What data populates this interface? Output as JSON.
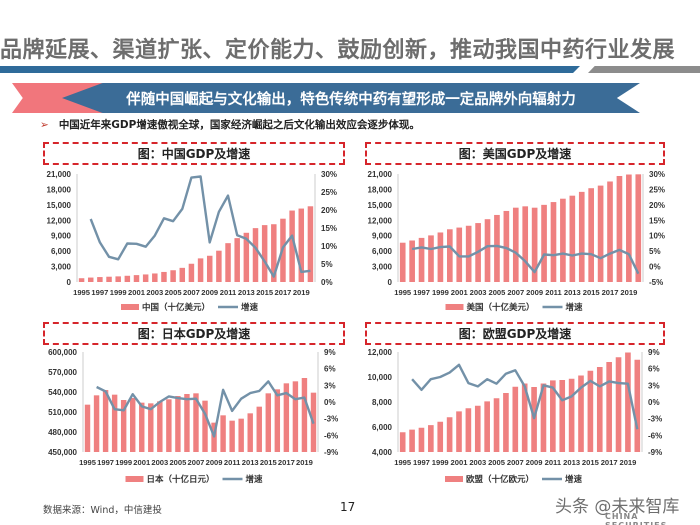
{
  "header": {
    "title": "品牌延展、渠道扩张、定价能力、鼓励创新，推动我国中药行业发展",
    "banner": "伴随中国崛起与文化输出，特色传统中药有望形成一定品牌外向辐射力",
    "bullet": "中国近年来GDP增速傲视全球，国家经济崛起之后文化输出效应会逐步体现。"
  },
  "footer": {
    "source": "数据来源：Wind，中信建投",
    "page": "17",
    "watermark": "头条 @未来智库",
    "logo_text": "CHINA SECURITIES"
  },
  "colors": {
    "bar": "#ef8080",
    "line": "#7391a8",
    "title_border": "#d6252b",
    "banner": "#3b6c97"
  },
  "chart_data": [
    {
      "type": "bar+line",
      "title": "图：中国GDP及增速",
      "bar_series": "中国（十亿美元）",
      "line_series": "增速",
      "x": [
        1995,
        1996,
        1997,
        1998,
        1999,
        2000,
        2001,
        2002,
        2003,
        2004,
        2005,
        2006,
        2007,
        2008,
        2009,
        2010,
        2011,
        2012,
        2013,
        2014,
        2015,
        2016,
        2017,
        2018,
        2019,
        2020
      ],
      "x_tick_labels": [
        "1995",
        "1997",
        "1999",
        "2001",
        "2003",
        "2005",
        "2007",
        "2009",
        "2011",
        "2013",
        "2015",
        "2017",
        "2019"
      ],
      "bars": [
        734,
        863,
        961,
        1029,
        1094,
        1211,
        1339,
        1471,
        1660,
        1955,
        2286,
        2752,
        3550,
        4594,
        5102,
        6087,
        7552,
        8532,
        9570,
        10475,
        11062,
        11233,
        12310,
        13894,
        14280,
        14723
      ],
      "growth": [
        null,
        17.5,
        11,
        7,
        6.3,
        10.7,
        10.6,
        9.8,
        12.9,
        17.7,
        16.9,
        20.3,
        29,
        29.3,
        11,
        19.5,
        24,
        13,
        12,
        9.5,
        5.7,
        1.5,
        9.6,
        12.9,
        2.8,
        3.1
      ],
      "ylim": [
        0,
        21000
      ],
      "yticks": [
        "0",
        "3,000",
        "6,000",
        "9,000",
        "12,000",
        "15,000",
        "18,000",
        "21,000"
      ],
      "y2lim": [
        0,
        30
      ],
      "y2ticks": [
        "0%",
        "5%",
        "10%",
        "15%",
        "20%",
        "25%",
        "30%"
      ]
    },
    {
      "type": "bar+line",
      "title": "图：美国GDP及增速",
      "bar_series": "美国（十亿美元）",
      "line_series": "增速",
      "x": [
        1995,
        1996,
        1997,
        1998,
        1999,
        2000,
        2001,
        2002,
        2003,
        2004,
        2005,
        2006,
        2007,
        2008,
        2009,
        2010,
        2011,
        2012,
        2013,
        2014,
        2015,
        2016,
        2017,
        2018,
        2019,
        2020
      ],
      "x_tick_labels": [
        "1995",
        "1997",
        "1999",
        "2001",
        "2003",
        "2005",
        "2007",
        "2009",
        "2011",
        "2013",
        "2015",
        "2017",
        "2019"
      ],
      "bars": [
        7640,
        8073,
        8577,
        9063,
        9631,
        10252,
        10582,
        10936,
        11458,
        12214,
        13037,
        13815,
        14452,
        14713,
        14449,
        15000,
        15543,
        16197,
        16785,
        17527,
        18238,
        18745,
        19543,
        20612,
        20900,
        20937
      ],
      "growth": [
        null,
        5.7,
        6.2,
        5.7,
        6.3,
        6.5,
        3.3,
        3.3,
        4.8,
        6.6,
        6.7,
        6.0,
        4.5,
        1.7,
        -1.8,
        3.9,
        3.7,
        4.2,
        3.6,
        4.2,
        4.0,
        2.7,
        4.2,
        5.4,
        4.0,
        -2.3
      ],
      "ylim": [
        0,
        21000
      ],
      "yticks": [
        "0",
        "3,000",
        "6,000",
        "9,000",
        "12,000",
        "15,000",
        "18,000",
        "21,000"
      ],
      "y2lim": [
        -5,
        30
      ],
      "y2ticks": [
        "-5%",
        "0%",
        "5%",
        "10%",
        "15%",
        "20%",
        "25%",
        "30%"
      ]
    },
    {
      "type": "bar+line",
      "title": "图：日本GDP及增速",
      "bar_series": "日本（十亿日元）",
      "line_series": "增速",
      "x": [
        1995,
        1996,
        1997,
        1998,
        1999,
        2000,
        2001,
        2002,
        2003,
        2004,
        2005,
        2006,
        2007,
        2008,
        2009,
        2010,
        2011,
        2012,
        2013,
        2014,
        2015,
        2016,
        2017,
        2018,
        2019,
        2020
      ],
      "x_tick_labels": [
        "1995",
        "1997",
        "1999",
        "2001",
        "2003",
        "2005",
        "2007",
        "2009",
        "2011",
        "2013",
        "2015",
        "2017",
        "2019"
      ],
      "bars": [
        521000,
        535000,
        543000,
        536000,
        528000,
        531000,
        524000,
        523000,
        526000,
        529000,
        534000,
        537000,
        538000,
        527000,
        494000,
        505000,
        497000,
        500000,
        508000,
        518000,
        538000,
        544000,
        553000,
        556000,
        561000,
        539000
      ],
      "growth": [
        null,
        2.7,
        1.9,
        -1.3,
        -1.5,
        1.4,
        -0.8,
        -1.3,
        0,
        1.0,
        0.7,
        0.5,
        0.6,
        -2.1,
        -6.2,
        2.2,
        -1.6,
        0.6,
        1.6,
        2.0,
        3.7,
        1.2,
        1.6,
        0.5,
        0.8,
        -3.9
      ],
      "ylim": [
        450000,
        600000
      ],
      "yticks": [
        "450,000",
        "480,000",
        "510,000",
        "540,000",
        "570,000",
        "600,000"
      ],
      "y2lim": [
        -9,
        9
      ],
      "y2ticks": [
        "-9%",
        "-6%",
        "-3%",
        "0%",
        "3%",
        "6%",
        "9%"
      ]
    },
    {
      "type": "bar+line",
      "title": "图：欧盟GDP及增速",
      "bar_series": "欧盟（十亿欧元）",
      "line_series": "增速",
      "x": [
        1995,
        1996,
        1997,
        1998,
        1999,
        2000,
        2001,
        2002,
        2003,
        2004,
        2005,
        2006,
        2007,
        2008,
        2009,
        2010,
        2011,
        2012,
        2013,
        2014,
        2015,
        2016,
        2017,
        2018,
        2019,
        2020
      ],
      "x_tick_labels": [
        "1995",
        "1997",
        "1999",
        "2001",
        "2003",
        "2005",
        "2007",
        "2009",
        "2011",
        "2013",
        "2015",
        "2017",
        "2019"
      ],
      "bars": [
        5580,
        5790,
        5940,
        6150,
        6420,
        6780,
        7250,
        7500,
        7700,
        8050,
        8300,
        8720,
        9220,
        9480,
        9200,
        9480,
        9730,
        9760,
        9860,
        10120,
        10500,
        10800,
        11200,
        11580,
        11960,
        11380
      ],
      "growth": [
        null,
        4.1,
        2.2,
        4.1,
        4.5,
        5.3,
        6.7,
        3.4,
        2.8,
        4.1,
        3.3,
        5.1,
        5.7,
        2.8,
        -2.9,
        3.0,
        2.6,
        0.3,
        1.0,
        2.6,
        3.8,
        2.8,
        3.7,
        3.4,
        3.3,
        -4.9
      ],
      "ylim": [
        4000,
        12000
      ],
      "yticks": [
        "4,000",
        "6,000",
        "8,000",
        "10,000",
        "12,000"
      ],
      "y2lim": [
        -9,
        9
      ],
      "y2ticks": [
        "-9%",
        "-6%",
        "-3%",
        "0%",
        "3%",
        "6%",
        "9%"
      ]
    }
  ]
}
